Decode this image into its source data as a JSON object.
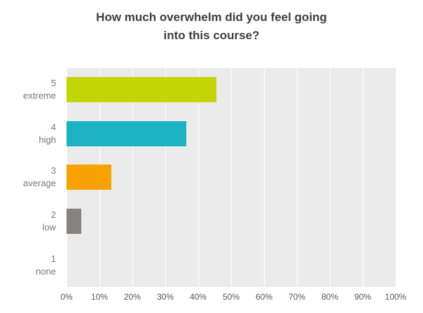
{
  "title": {
    "line1": "How much overwhelm did you feel going",
    "line2": "into this course?"
  },
  "chart_data": {
    "type": "bar",
    "orientation": "horizontal",
    "title": "How much overwhelm did you feel going into this course?",
    "xlabel": "",
    "ylabel": "",
    "xlim": [
      0,
      100
    ],
    "grid": true,
    "plot_background": "#ebebeb",
    "gridline_color": "#ffffff",
    "legend": "none",
    "categories": [
      "5 extreme",
      "4 high",
      "3 average",
      "2 low",
      "1 none"
    ],
    "values": [
      45.5,
      36.4,
      13.6,
      4.5,
      0
    ],
    "rows": [
      {
        "value": "5",
        "label": "extreme",
        "percent": 45.5,
        "color": "#c3d500"
      },
      {
        "value": "4",
        "label": "high",
        "percent": 36.4,
        "color": "#1bb2c4"
      },
      {
        "value": "3",
        "label": "average",
        "percent": 13.6,
        "color": "#f7a200"
      },
      {
        "value": "2",
        "label": "low",
        "percent": 4.5,
        "color": "#84837d"
      },
      {
        "value": "1",
        "label": "none",
        "percent": 0,
        "color": "#84837d"
      }
    ],
    "x_ticks": [
      "0%",
      "10%",
      "20%",
      "30%",
      "40%",
      "50%",
      "60%",
      "70%",
      "80%",
      "90%",
      "100%"
    ]
  }
}
